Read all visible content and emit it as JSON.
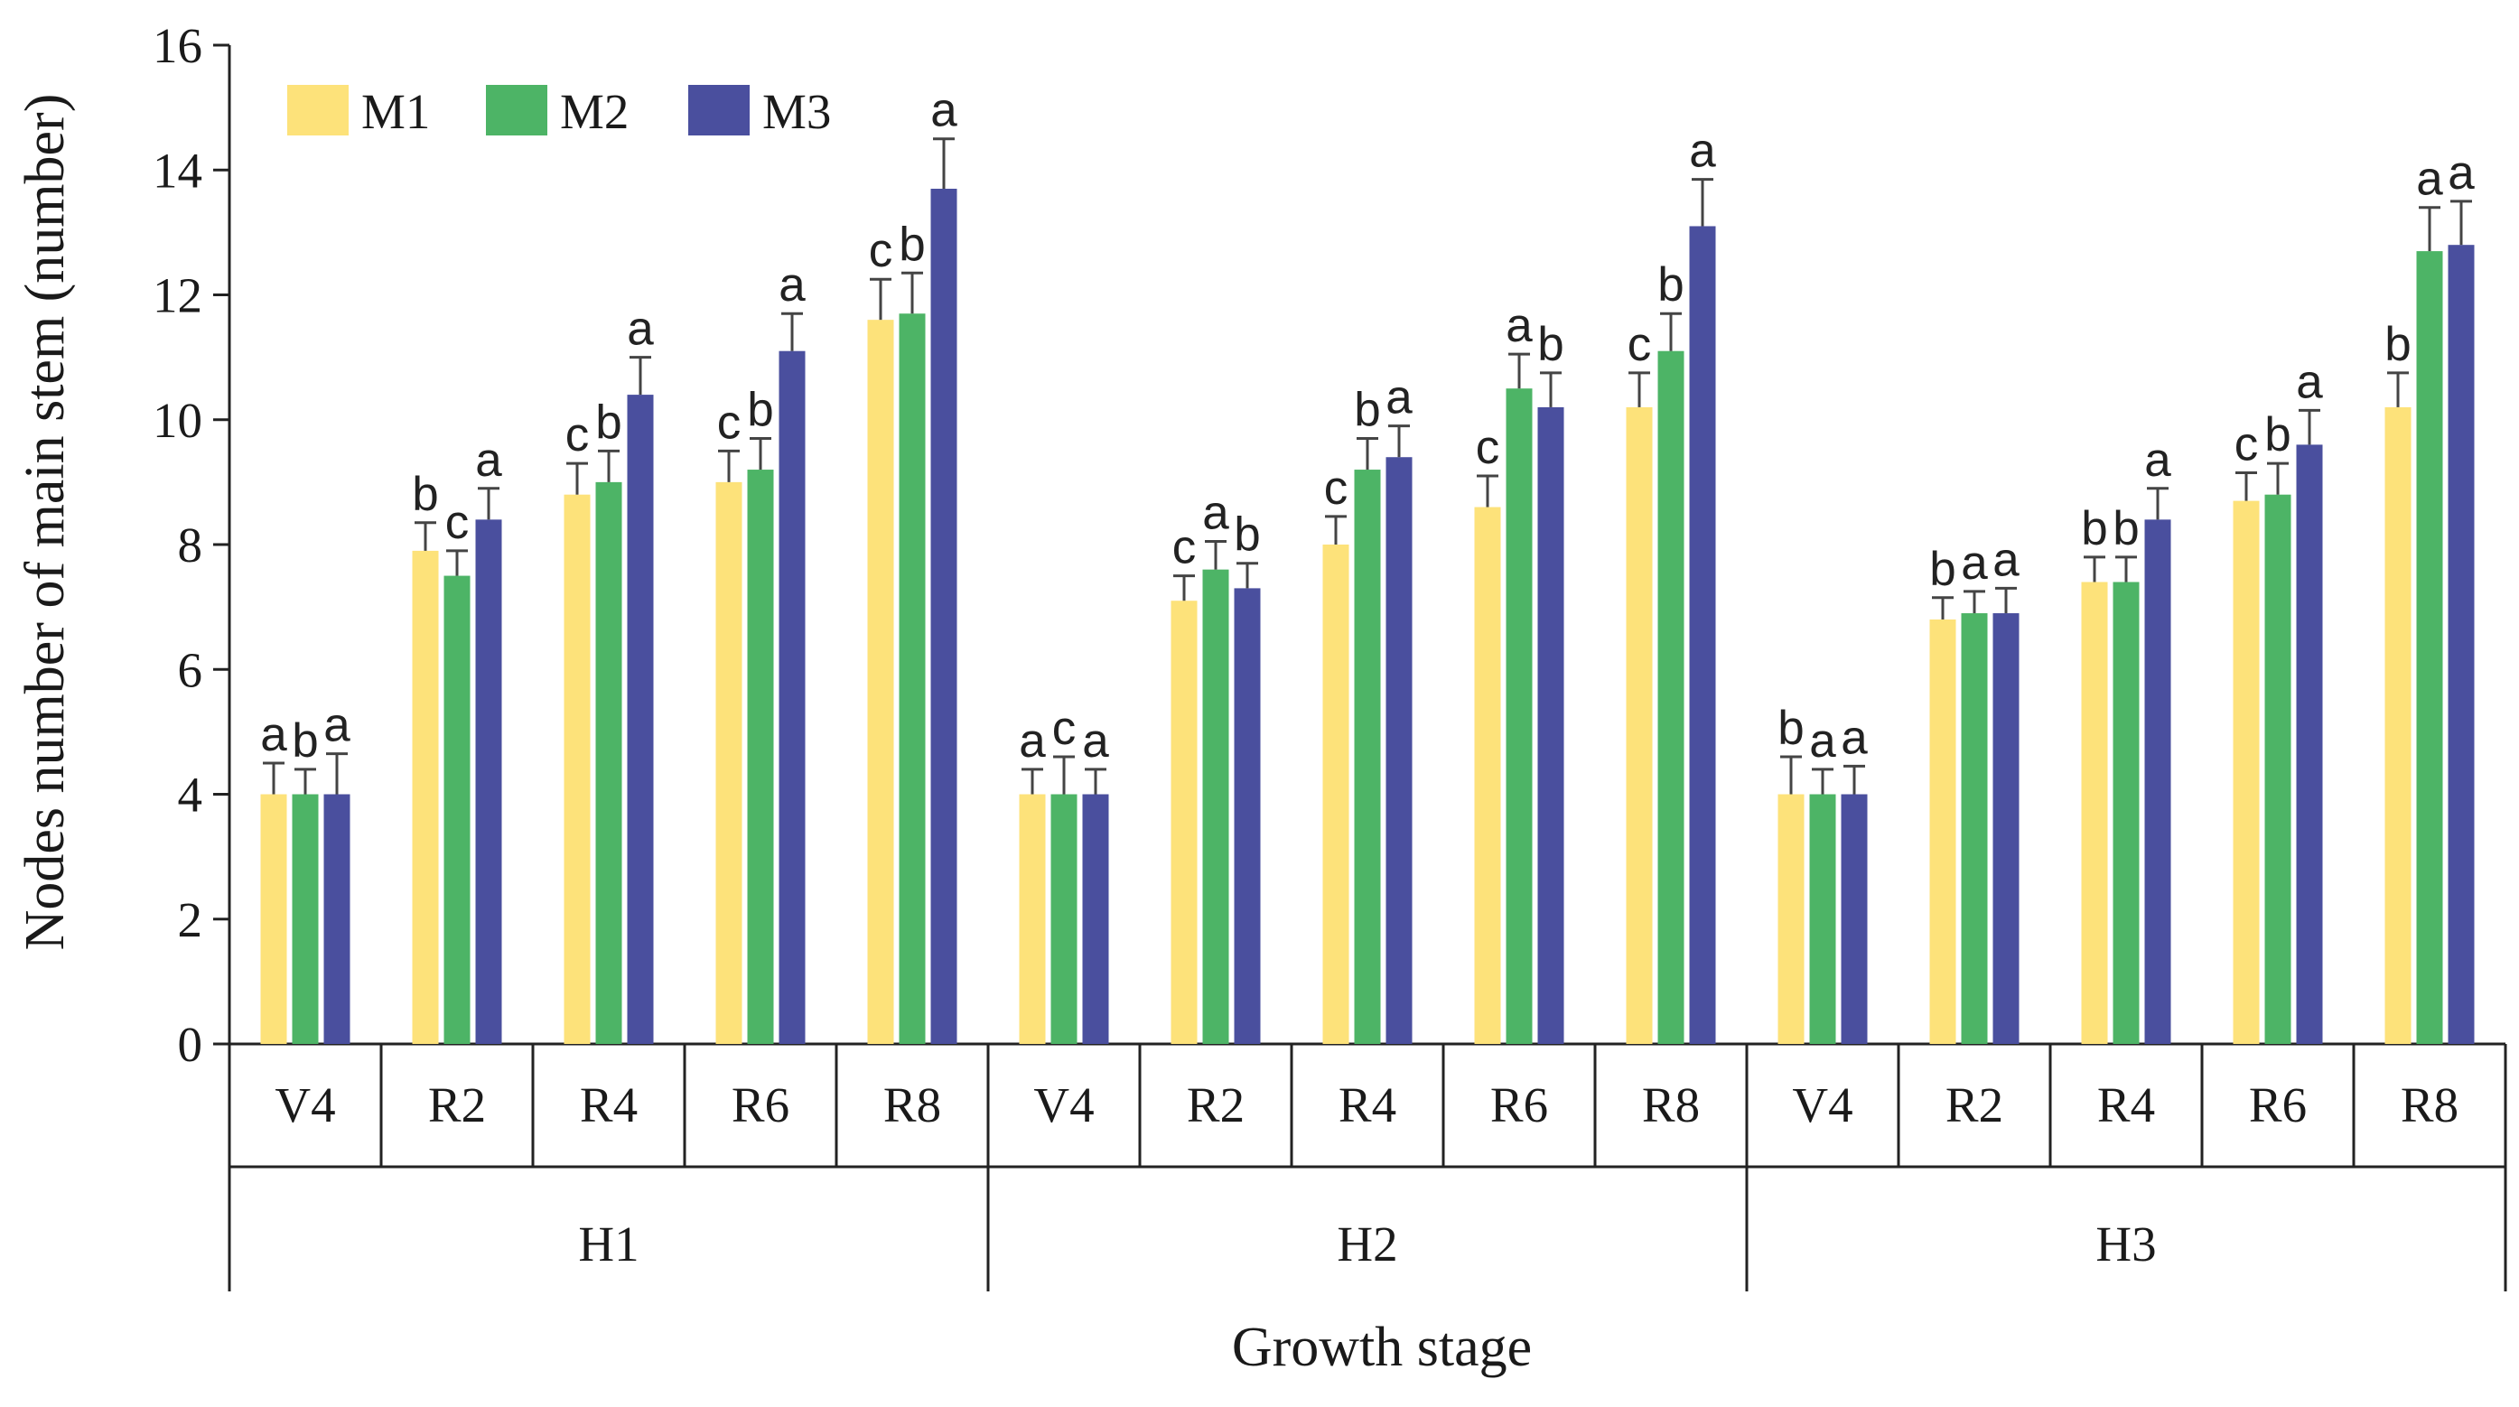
{
  "chart_data": {
    "type": "bar",
    "title": "",
    "ylabel": "Nodes number of main stem (number)",
    "xlabel": "Growth stage",
    "ylim": [
      0,
      16
    ],
    "yticks": [
      0,
      2,
      4,
      6,
      8,
      10,
      12,
      14,
      16
    ],
    "yticklabels": [
      "0",
      "2",
      "4",
      "6",
      "8",
      "10",
      "12",
      "14",
      "16"
    ],
    "legend_position": "top-left",
    "colors": {
      "M1": "#FDE27A",
      "M2": "#4DB466",
      "M3": "#4A4F9E",
      "errorbar": "#444444",
      "axis": "#222222"
    },
    "groups": [
      {
        "name": "H1",
        "stages": [
          {
            "stage": "V4",
            "values": [
              4.0,
              4.0,
              4.0
            ],
            "errors": [
              0.5,
              0.4,
              0.65
            ],
            "labels": [
              "a",
              "b",
              "a"
            ]
          },
          {
            "stage": "R2",
            "values": [
              7.9,
              7.5,
              8.4
            ],
            "errors": [
              0.45,
              0.4,
              0.5
            ],
            "labels": [
              "b",
              "c",
              "a"
            ]
          },
          {
            "stage": "R4",
            "values": [
              8.8,
              9.0,
              10.4
            ],
            "errors": [
              0.5,
              0.5,
              0.6
            ],
            "labels": [
              "c",
              "b",
              "a"
            ]
          },
          {
            "stage": "R6",
            "values": [
              9.0,
              9.2,
              11.1
            ],
            "errors": [
              0.5,
              0.5,
              0.6
            ],
            "labels": [
              "c",
              "b",
              "a"
            ]
          },
          {
            "stage": "R8",
            "values": [
              11.6,
              11.7,
              13.7
            ],
            "errors": [
              0.65,
              0.65,
              0.8
            ],
            "labels": [
              "c",
              "b",
              "a"
            ]
          }
        ]
      },
      {
        "name": "H2",
        "stages": [
          {
            "stage": "V4",
            "values": [
              4.0,
              4.0,
              4.0
            ],
            "errors": [
              0.4,
              0.6,
              0.4
            ],
            "labels": [
              "a",
              "c",
              "a"
            ]
          },
          {
            "stage": "R2",
            "values": [
              7.1,
              7.6,
              7.3
            ],
            "errors": [
              0.4,
              0.45,
              0.4
            ],
            "labels": [
              "c",
              "a",
              "b"
            ]
          },
          {
            "stage": "R4",
            "values": [
              8.0,
              9.2,
              9.4
            ],
            "errors": [
              0.45,
              0.5,
              0.5
            ],
            "labels": [
              "c",
              "b",
              "a"
            ]
          },
          {
            "stage": "R6",
            "values": [
              8.6,
              10.5,
              10.2
            ],
            "errors": [
              0.5,
              0.55,
              0.55
            ],
            "labels": [
              "c",
              "a",
              "b"
            ]
          },
          {
            "stage": "R8",
            "values": [
              10.2,
              11.1,
              13.1
            ],
            "errors": [
              0.55,
              0.6,
              0.75
            ],
            "labels": [
              "c",
              "b",
              "a"
            ]
          }
        ]
      },
      {
        "name": "H3",
        "stages": [
          {
            "stage": "V4",
            "values": [
              4.0,
              4.0,
              4.0
            ],
            "errors": [
              0.6,
              0.4,
              0.45
            ],
            "labels": [
              "b",
              "a",
              "a"
            ]
          },
          {
            "stage": "R2",
            "values": [
              6.8,
              6.9,
              6.9
            ],
            "errors": [
              0.35,
              0.35,
              0.4
            ],
            "labels": [
              "b",
              "a",
              "a"
            ]
          },
          {
            "stage": "R4",
            "values": [
              7.4,
              7.4,
              8.4
            ],
            "errors": [
              0.4,
              0.4,
              0.5
            ],
            "labels": [
              "b",
              "b",
              "a"
            ]
          },
          {
            "stage": "R6",
            "values": [
              8.7,
              8.8,
              9.6
            ],
            "errors": [
              0.45,
              0.5,
              0.55
            ],
            "labels": [
              "c",
              "b",
              "a"
            ]
          },
          {
            "stage": "R8",
            "values": [
              10.2,
              12.7,
              12.8
            ],
            "errors": [
              0.55,
              0.7,
              0.7
            ],
            "labels": [
              "b",
              "a",
              "a"
            ]
          }
        ]
      }
    ],
    "series": [
      {
        "name": "M1",
        "color": "#FDE27A"
      },
      {
        "name": "M2",
        "color": "#4DB466"
      },
      {
        "name": "M3",
        "color": "#4A4F9E"
      }
    ]
  }
}
